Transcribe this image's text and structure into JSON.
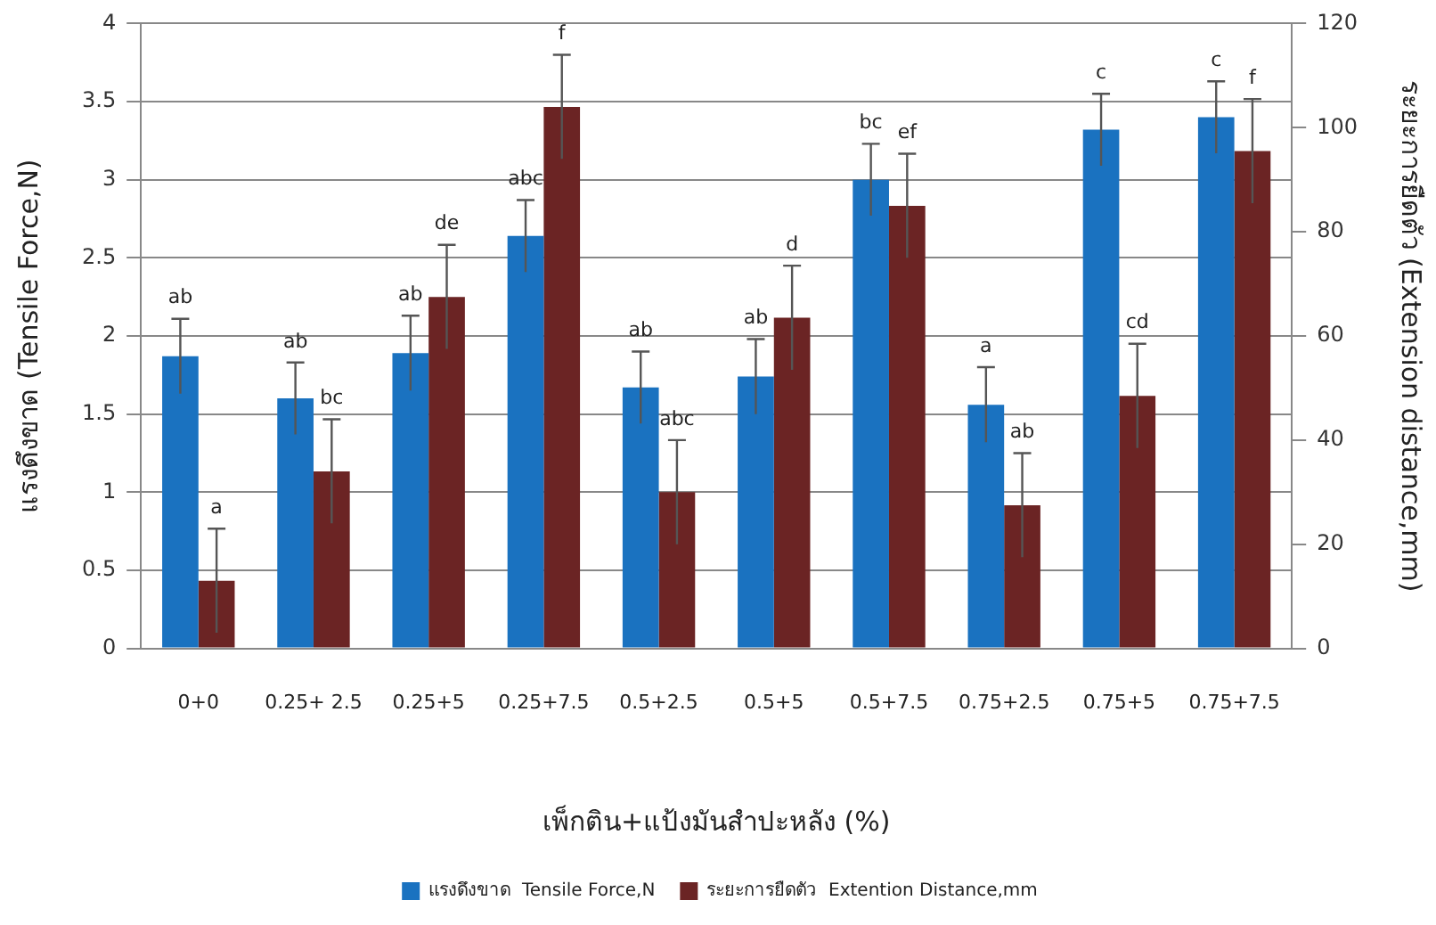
{
  "chart_data": {
    "type": "bar",
    "xlabel": "เพ็กติน+แป้งมันสำปะหลัง (%)",
    "ylabel": "แรงดึงขาด (Tensile Force,N)",
    "y2label": "ระยะการยืดตัว (Extension distance,mm)",
    "categories": [
      "0+0",
      "0.25+ 2.5",
      "0.25+5",
      "0.25+7.5",
      "0.5+2.5",
      "0.5+5",
      "0.5+7.5",
      "0.75+2.5",
      "0.75+5",
      "0.75+7.5"
    ],
    "series": [
      {
        "name": "แรงดึงขาด  Tensile Force,N",
        "color": "#1a72c0",
        "values": [
          1.87,
          1.6,
          1.89,
          2.64,
          1.67,
          1.74,
          3.0,
          1.56,
          3.32,
          3.4
        ],
        "errors": [
          0.24,
          0.23,
          0.24,
          0.23,
          0.23,
          0.24,
          0.23,
          0.24,
          0.23,
          0.23
        ],
        "value_labels": [
          "ab",
          "ab",
          "ab",
          "abc",
          "ab",
          "ab",
          "bc",
          "a",
          "c",
          "c"
        ]
      },
      {
        "name": "ระยะการยืดตัว  Extention Distance,mm",
        "color": "#6b2424",
        "axis": "y2",
        "values": [
          13,
          34,
          67.5,
          104,
          30,
          63.5,
          85,
          27.5,
          48.5,
          95.5
        ],
        "errors": [
          10,
          10,
          10,
          10,
          10,
          10,
          10,
          10,
          10,
          10
        ],
        "value_labels": [
          "a",
          "bc",
          "de",
          "f",
          "abc",
          "d",
          "ef",
          "ab",
          "cd",
          "f"
        ]
      }
    ],
    "ylim": [
      0,
      4
    ],
    "yticks": [
      0,
      0.5,
      1,
      1.5,
      2,
      2.5,
      3,
      3.5,
      4
    ],
    "y2lim": [
      0,
      120
    ],
    "y2ticks": [
      0,
      20,
      40,
      60,
      80,
      100,
      120
    ],
    "grid": "y",
    "legend": "bottom"
  }
}
